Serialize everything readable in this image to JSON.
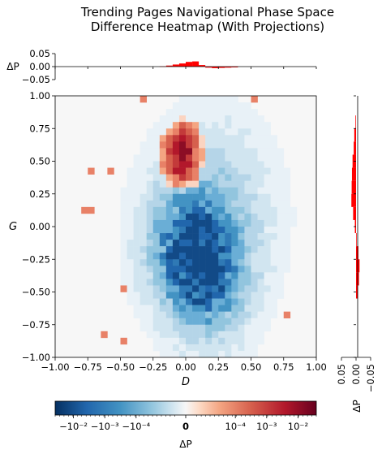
{
  "chart_data": {
    "type": "heatmap",
    "title_lines": [
      "Trending Pages Navigational Phase Space",
      "Difference Heatmap (With Projections)"
    ],
    "xlabel": "D",
    "ylabel": "G",
    "xlim": [
      -1.0,
      1.0
    ],
    "ylim": [
      -1.0,
      1.0
    ],
    "x_ticks": [
      "−1.00",
      "−0.75",
      "−0.50",
      "−0.25",
      "0.00",
      "0.25",
      "0.50",
      "0.75",
      "1.00"
    ],
    "y_ticks": [
      "1.00",
      "0.75",
      "0.50",
      "0.25",
      "0.00",
      "−0.25",
      "−0.50",
      "−0.75",
      "−1.00"
    ],
    "grid": false,
    "bins": 40,
    "colormap": "RdBu_r (symmetric log scale)",
    "positive_color": "#67001f",
    "negative_color": "#053061",
    "top_projection": {
      "ylabel": "ΔP",
      "y_ticks": [
        "0.05",
        "0.00",
        "−0.05"
      ],
      "ylim": [
        -0.05,
        0.05
      ],
      "bar_color": "#ff0000",
      "bin_edges_x": [
        -0.2,
        -0.15,
        -0.1,
        -0.05,
        0.0,
        0.05,
        0.1,
        0.15,
        0.2,
        0.25,
        0.3,
        0.35,
        0.4
      ],
      "values": [
        0.001,
        0.004,
        0.008,
        0.012,
        0.018,
        0.02,
        0.006,
        -0.004,
        -0.006,
        -0.005,
        -0.004,
        -0.003,
        -0.002
      ]
    },
    "right_projection": {
      "xlabel": "ΔP",
      "x_ticks": [
        "0.05",
        "0.00",
        "−0.05"
      ],
      "xlim": [
        -0.05,
        0.05
      ],
      "bar_color": "#ff0000",
      "bin_edges_y": [
        0.85,
        0.75,
        0.65,
        0.55,
        0.45,
        0.35,
        0.25,
        0.15,
        0.05,
        -0.05,
        -0.15,
        -0.25,
        -0.35,
        -0.45,
        -0.55
      ],
      "values": [
        0.002,
        0.006,
        0.008,
        0.012,
        0.014,
        0.015,
        0.016,
        0.01,
        0.004,
        -0.002,
        -0.008,
        -0.012,
        -0.01,
        -0.006,
        -0.003
      ]
    },
    "colorbar": {
      "label": "ΔP",
      "tick_labels": [
        "−10⁻²",
        "−10⁻³",
        "−10⁻⁴",
        "0",
        "10⁻⁴",
        "10⁻³",
        "10⁻²"
      ],
      "tick_positions": [
        0.07,
        0.19,
        0.31,
        0.5,
        0.69,
        0.81,
        0.93
      ],
      "scale": "symlog"
    }
  }
}
